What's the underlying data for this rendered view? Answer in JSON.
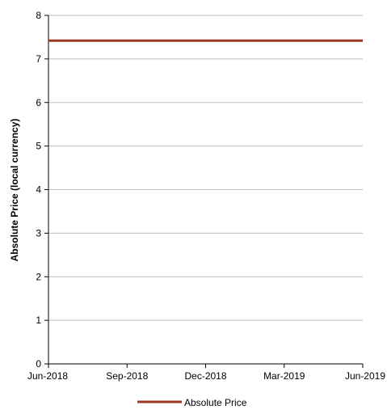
{
  "chart_data": {
    "type": "line",
    "title": "",
    "xlabel": "",
    "ylabel": "Absolute Price (local currency)",
    "ylim": [
      0,
      8
    ],
    "yticks": [
      "0",
      "1",
      "2",
      "3",
      "4",
      "5",
      "6",
      "7",
      "8"
    ],
    "xticks": [
      "Jun-2018",
      "Sep-2018",
      "Dec-2018",
      "Mar-2019",
      "Jun-2019"
    ],
    "grid": true,
    "legend": "bottom",
    "series": [
      {
        "name": "Absolute Price",
        "color": "#9b3a24",
        "x": [
          "Jun-2018",
          "Jun-2019"
        ],
        "values": [
          7.42,
          7.42
        ]
      }
    ]
  }
}
